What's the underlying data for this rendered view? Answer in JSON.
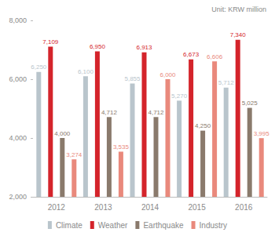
{
  "chart_data": {
    "type": "bar",
    "subtitle": "Unit: KRW million",
    "categories": [
      "2012",
      "2013",
      "2014",
      "2015",
      "2016"
    ],
    "series": [
      {
        "name": "Climate",
        "color": "#b9c5cc",
        "values": [
          6250,
          6100,
          5855,
          5270,
          5712
        ],
        "value_labels": [
          "6,250",
          "6,100",
          "5,855",
          "5,270",
          "5,712"
        ]
      },
      {
        "name": "Weather",
        "color": "#d4242b",
        "values": [
          7109,
          6950,
          6913,
          6673,
          7340
        ],
        "value_labels": [
          "7,109",
          "6,950",
          "6,913",
          "6,673",
          "7,340"
        ]
      },
      {
        "name": "Earthquake",
        "color": "#8a7a6c",
        "values": [
          4000,
          4712,
          4712,
          4250,
          5025
        ],
        "value_labels": [
          "4,000",
          "4,712",
          "4,712",
          "4,250",
          "5,025"
        ]
      },
      {
        "name": "Industry",
        "color": "#e9897c",
        "values": [
          3274,
          3535,
          6000,
          6606,
          3995
        ],
        "value_labels": [
          "3,274",
          "3,535",
          "6,000",
          "6,606",
          "3,995"
        ]
      }
    ],
    "ylim": [
      2000,
      8000
    ],
    "yticks": [
      {
        "value": 2000,
        "label": "2,000"
      },
      {
        "value": 4000,
        "label": "4,000"
      },
      {
        "value": 6000,
        "label": "6,000"
      },
      {
        "value": 8000,
        "label": "8,000"
      }
    ],
    "grid": false,
    "legend": "bottom",
    "data_labels": true
  }
}
